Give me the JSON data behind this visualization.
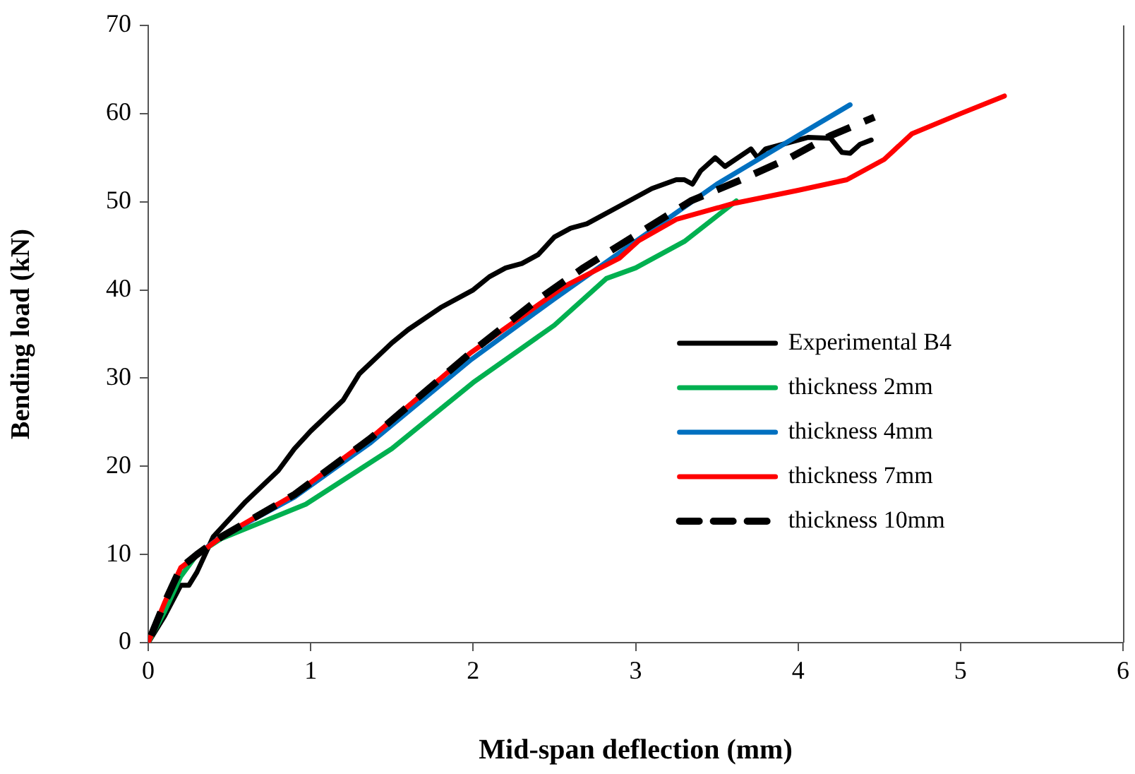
{
  "chart_data": {
    "type": "line",
    "xlabel": "Mid-span deflection (mm)",
    "ylabel": "Bending load (kN)",
    "xlim": [
      0,
      6
    ],
    "xticks": [
      0,
      1,
      2,
      3,
      4,
      5,
      6
    ],
    "ylim": [
      0,
      70
    ],
    "yticks": [
      0,
      10,
      20,
      30,
      40,
      50,
      60,
      70
    ],
    "grid": false,
    "legend": "right",
    "marker": "none",
    "series": [
      {
        "name": "Experimental B4",
        "color": "#000000",
        "x": [
          0,
          0.1,
          0.2,
          0.25,
          0.3,
          0.35,
          0.4,
          0.5,
          0.6,
          0.8,
          0.9,
          1.0,
          1.2,
          1.3,
          1.5,
          1.6,
          1.8,
          2.0,
          2.1,
          2.2,
          2.3,
          2.4,
          2.5,
          2.6,
          2.7,
          2.9,
          3.0,
          3.1,
          3.25,
          3.3,
          3.35,
          3.4,
          3.49,
          3.55,
          3.71,
          3.75,
          3.8,
          4.06,
          4.2,
          4.27,
          4.32,
          4.38,
          4.45
        ],
        "values": [
          0,
          3,
          6.5,
          6.5,
          8,
          10,
          12,
          14,
          16,
          19.5,
          22,
          24,
          27.5,
          30.5,
          34,
          35.5,
          38,
          40,
          41.5,
          42.5,
          43,
          44,
          46,
          47,
          47.5,
          49.5,
          50.5,
          51.5,
          52.5,
          52.5,
          52,
          53.5,
          55,
          54,
          56,
          55,
          56,
          57.3,
          57.2,
          55.6,
          55.5,
          56.5,
          57
        ]
      },
      {
        "name": "thickness 2mm",
        "color": "#00b050",
        "x": [
          0,
          0.1,
          0.2,
          0.3,
          0.45,
          0.97,
          1.5,
          2.0,
          2.5,
          2.82,
          3.0,
          3.3,
          3.62
        ],
        "values": [
          0,
          3.5,
          7.5,
          10,
          11.8,
          15.7,
          22,
          29.5,
          36,
          41.3,
          42.5,
          45.5,
          50.1
        ]
      },
      {
        "name": "thickness 4mm",
        "color": "#0070c0",
        "x": [
          0.3,
          0.45,
          0.9,
          1.37,
          1.98,
          2.5,
          3.0,
          3.5,
          4.0,
          4.32
        ],
        "values": [
          10,
          12,
          16.5,
          22.7,
          32,
          39,
          45.5,
          52,
          57.5,
          61
        ]
      },
      {
        "name": "thickness 7mm",
        "color": "#ff0000",
        "x": [
          0,
          0.1,
          0.2,
          0.45,
          0.9,
          1.37,
          1.98,
          2.56,
          2.9,
          3.02,
          3.25,
          3.6,
          4.0,
          4.3,
          4.45,
          4.53,
          4.7,
          5.0,
          5.27
        ],
        "values": [
          0,
          4.5,
          8.5,
          12,
          16.8,
          23.2,
          32.8,
          40.4,
          43.6,
          45.6,
          48,
          49.8,
          51.3,
          52.5,
          54,
          54.8,
          57.7,
          60,
          62
        ]
      },
      {
        "name": "thickness 10mm",
        "color": "#000000",
        "line_style": "dashed",
        "x": [
          0,
          0.1,
          0.2,
          0.3,
          0.45,
          0.9,
          1.37,
          1.98,
          2.39,
          2.67,
          2.99,
          3.34,
          3.65,
          3.95,
          4.2,
          4.47
        ],
        "values": [
          0,
          4.5,
          8.5,
          10,
          12,
          16.8,
          23.2,
          32.8,
          38.8,
          42.4,
          46.1,
          50.1,
          52.5,
          55,
          57.5,
          59.6
        ]
      }
    ]
  }
}
